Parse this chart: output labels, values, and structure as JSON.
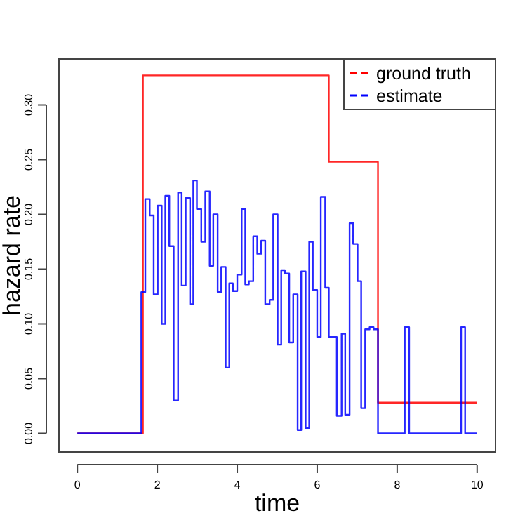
{
  "chart_data": {
    "type": "step",
    "xlabel": "time",
    "ylabel": "hazard rate",
    "xlim": [
      -0.46,
      10.46
    ],
    "ylim": [
      -0.017,
      0.342
    ],
    "xticks": [
      0,
      2,
      4,
      6,
      8,
      10
    ],
    "yticks": [
      {
        "value": 0,
        "label": "0.00"
      },
      {
        "value": 0.05,
        "label": "0.05"
      },
      {
        "value": 0.1,
        "label": "0.10"
      },
      {
        "value": 0.15,
        "label": "0.15"
      },
      {
        "value": 0.2,
        "label": "0.20"
      },
      {
        "value": 0.25,
        "label": "0.25"
      },
      {
        "value": 0.3,
        "label": "0.30"
      }
    ],
    "grid": false,
    "legend": "top right",
    "marker": "none",
    "line_style": "solid",
    "series": [
      {
        "name": "ground truth",
        "color": "#ff0000",
        "x": [
          0,
          1.64,
          6.29,
          7.52,
          10
        ],
        "values": [
          0,
          0.327,
          0.248,
          0.028,
          0.028
        ]
      },
      {
        "name": "estimate",
        "color": "#0000ff",
        "x": [
          0,
          1.6,
          1.7,
          1.81,
          1.91,
          2.01,
          2.11,
          2.2,
          2.3,
          2.41,
          2.52,
          2.61,
          2.71,
          2.82,
          2.9,
          2.99,
          3.1,
          3.2,
          3.31,
          3.4,
          3.51,
          3.6,
          3.71,
          3.8,
          3.89,
          4,
          4.11,
          4.2,
          4.29,
          4.4,
          4.5,
          4.6,
          4.7,
          4.81,
          4.9,
          5.01,
          5.1,
          5.19,
          5.3,
          5.4,
          5.51,
          5.6,
          5.71,
          5.8,
          5.89,
          6,
          6.09,
          6.2,
          6.29,
          6.49,
          6.61,
          6.7,
          6.81,
          6.9,
          7.01,
          7.1,
          7.2,
          7.31,
          7.41,
          7.52,
          8.19,
          8.3,
          9.6,
          9.7,
          10
        ],
        "values": [
          0,
          0.129,
          0.214,
          0.199,
          0.127,
          0.208,
          0.1,
          0.217,
          0.171,
          0.03,
          0.22,
          0.135,
          0.215,
          0.118,
          0.231,
          0.205,
          0.175,
          0.221,
          0.153,
          0.2,
          0.129,
          0.152,
          0.06,
          0.137,
          0.13,
          0.145,
          0.205,
          0.136,
          0.139,
          0.18,
          0.164,
          0.176,
          0.118,
          0.122,
          0.2,
          0.081,
          0.149,
          0.146,
          0.083,
          0.127,
          0.003,
          0.148,
          0.005,
          0.175,
          0.131,
          0.088,
          0.216,
          0.133,
          0.088,
          0.016,
          0.091,
          0.017,
          0.192,
          0.173,
          0.139,
          0.023,
          0.095,
          0.097,
          0.095,
          0,
          0.097,
          0,
          0.097,
          0,
          0
        ]
      }
    ]
  }
}
